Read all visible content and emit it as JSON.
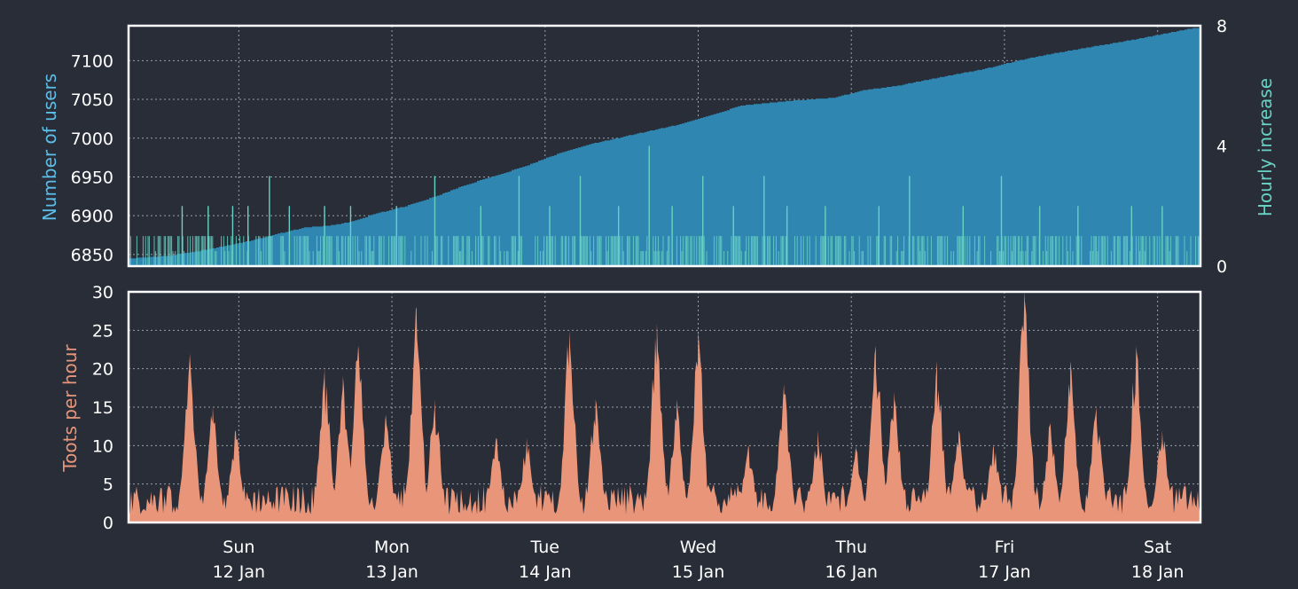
{
  "theme": {
    "background": "#292d38",
    "frame": "#ffffff",
    "grid": "#9aa0aa",
    "tick_text": "#ffffff",
    "users_color": "#2e86b1",
    "users_label_color": "#5dbde6",
    "increase_color": "#67d2c4",
    "toots_color": "#e8957a",
    "toots_label_color": "#e8957a"
  },
  "chart_data": [
    {
      "id": "users",
      "type": "area",
      "ylabel": "Number of users",
      "y2label": "Hourly increase",
      "ylim": [
        6835,
        7145
      ],
      "yticks": [
        6850,
        6900,
        6950,
        7000,
        7050,
        7100
      ],
      "y2lim": [
        0,
        8
      ],
      "y2ticks": [
        0,
        4,
        8
      ],
      "x_days": [
        0,
        7
      ],
      "grid": true,
      "series": [
        {
          "kind": "users_total",
          "x_days": [
            0.0,
            0.25,
            0.5,
            0.8,
            1.0,
            1.15,
            1.3,
            1.45,
            1.6,
            1.8,
            2.0,
            2.2,
            2.4,
            2.6,
            2.8,
            3.0,
            3.3,
            3.6,
            3.8,
            4.0,
            4.3,
            4.6,
            4.8,
            5.0,
            5.2,
            5.6,
            5.8,
            6.0,
            6.2,
            6.5,
            6.95
          ],
          "values": [
            6845,
            6848,
            6856,
            6868,
            6878,
            6885,
            6887,
            6892,
            6902,
            6912,
            6925,
            6940,
            6952,
            6965,
            6980,
            6992,
            7005,
            7018,
            7030,
            7042,
            7048,
            7052,
            7062,
            7067,
            7075,
            7090,
            7100,
            7108,
            7115,
            7125,
            7142
          ]
        },
        {
          "kind": "hourly_increase",
          "baseline_max": 1,
          "spikes": [
            {
              "x_day": 0.35,
              "value": 2
            },
            {
              "x_day": 0.52,
              "value": 2
            },
            {
              "x_day": 0.68,
              "value": 2
            },
            {
              "x_day": 0.78,
              "value": 2
            },
            {
              "x_day": 0.92,
              "value": 3
            },
            {
              "x_day": 1.05,
              "value": 2
            },
            {
              "x_day": 1.28,
              "value": 2
            },
            {
              "x_day": 1.45,
              "value": 2
            },
            {
              "x_day": 1.75,
              "value": 2
            },
            {
              "x_day": 2.0,
              "value": 3
            },
            {
              "x_day": 2.3,
              "value": 2
            },
            {
              "x_day": 2.55,
              "value": 3
            },
            {
              "x_day": 2.75,
              "value": 2
            },
            {
              "x_day": 2.95,
              "value": 3
            },
            {
              "x_day": 3.2,
              "value": 2
            },
            {
              "x_day": 3.4,
              "value": 4
            },
            {
              "x_day": 3.55,
              "value": 2
            },
            {
              "x_day": 3.75,
              "value": 3
            },
            {
              "x_day": 3.95,
              "value": 2
            },
            {
              "x_day": 4.15,
              "value": 3
            },
            {
              "x_day": 4.3,
              "value": 2
            },
            {
              "x_day": 4.55,
              "value": 2
            },
            {
              "x_day": 4.9,
              "value": 2
            },
            {
              "x_day": 5.1,
              "value": 3
            },
            {
              "x_day": 5.45,
              "value": 2
            },
            {
              "x_day": 5.7,
              "value": 3
            },
            {
              "x_day": 5.95,
              "value": 2
            },
            {
              "x_day": 6.2,
              "value": 2
            },
            {
              "x_day": 6.55,
              "value": 2
            },
            {
              "x_day": 6.75,
              "value": 2
            }
          ]
        }
      ]
    },
    {
      "id": "toots",
      "type": "area",
      "ylabel": "Toots per hour",
      "ylim": [
        0,
        30
      ],
      "yticks": [
        0,
        5,
        10,
        15,
        20,
        25,
        30
      ],
      "x_days": [
        0,
        7
      ],
      "grid": true,
      "typical_level": 3,
      "peaks": [
        {
          "x_day": 0.4,
          "value": 22
        },
        {
          "x_day": 0.55,
          "value": 15
        },
        {
          "x_day": 0.7,
          "value": 12
        },
        {
          "x_day": 1.28,
          "value": 20
        },
        {
          "x_day": 1.4,
          "value": 19
        },
        {
          "x_day": 1.5,
          "value": 23
        },
        {
          "x_day": 1.68,
          "value": 14
        },
        {
          "x_day": 1.88,
          "value": 28
        },
        {
          "x_day": 2.0,
          "value": 16
        },
        {
          "x_day": 2.4,
          "value": 11
        },
        {
          "x_day": 2.6,
          "value": 11
        },
        {
          "x_day": 2.88,
          "value": 25
        },
        {
          "x_day": 3.05,
          "value": 16
        },
        {
          "x_day": 3.45,
          "value": 26
        },
        {
          "x_day": 3.58,
          "value": 16
        },
        {
          "x_day": 3.72,
          "value": 25
        },
        {
          "x_day": 4.05,
          "value": 10
        },
        {
          "x_day": 4.28,
          "value": 18
        },
        {
          "x_day": 4.5,
          "value": 12
        },
        {
          "x_day": 4.75,
          "value": 10
        },
        {
          "x_day": 4.88,
          "value": 23
        },
        {
          "x_day": 5.0,
          "value": 17
        },
        {
          "x_day": 5.28,
          "value": 21
        },
        {
          "x_day": 5.42,
          "value": 12
        },
        {
          "x_day": 5.65,
          "value": 10
        },
        {
          "x_day": 5.85,
          "value": 30
        },
        {
          "x_day": 6.02,
          "value": 13
        },
        {
          "x_day": 6.15,
          "value": 21
        },
        {
          "x_day": 6.32,
          "value": 15
        },
        {
          "x_day": 6.58,
          "value": 23
        },
        {
          "x_day": 6.75,
          "value": 12
        }
      ]
    }
  ],
  "x_axis": {
    "ticks": [
      {
        "x_day": 0.72,
        "weekday": "Sun",
        "date": "12 Jan"
      },
      {
        "x_day": 1.72,
        "weekday": "Mon",
        "date": "13 Jan"
      },
      {
        "x_day": 2.72,
        "weekday": "Tue",
        "date": "14 Jan"
      },
      {
        "x_day": 3.72,
        "weekday": "Wed",
        "date": "15 Jan"
      },
      {
        "x_day": 4.72,
        "weekday": "Thu",
        "date": "16 Jan"
      },
      {
        "x_day": 5.72,
        "weekday": "Fri",
        "date": "17 Jan"
      },
      {
        "x_day": 6.72,
        "weekday": "Sat",
        "date": "18 Jan"
      }
    ]
  }
}
